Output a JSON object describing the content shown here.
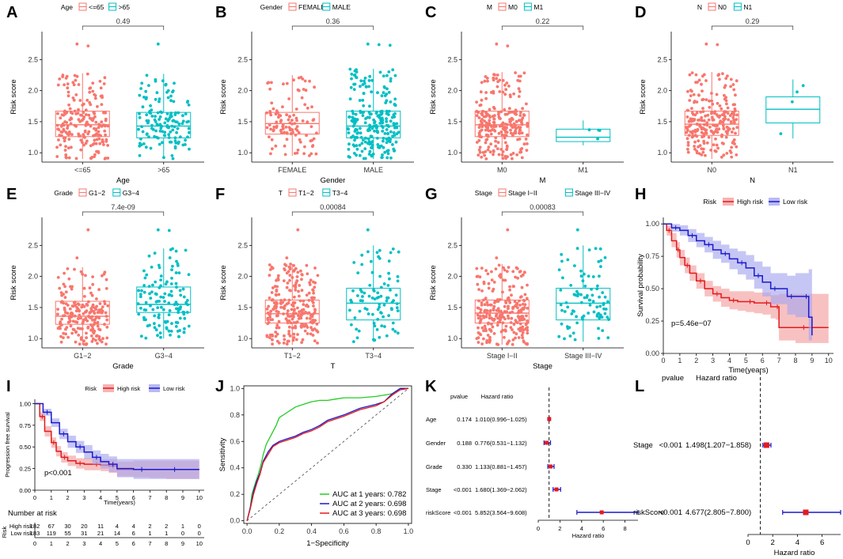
{
  "figure": {
    "panel_labels": [
      "A",
      "B",
      "C",
      "D",
      "E",
      "F",
      "G",
      "H",
      "I",
      "J",
      "K",
      "L"
    ]
  },
  "colors": {
    "group1": "#F8766D",
    "group2": "#00BFC4",
    "high_risk": "#E41A1C",
    "low_risk": "#1A1ACC",
    "high_band": "#F5A0A0",
    "low_band": "#A8A8F0",
    "roc_1y": "#22CC22",
    "roc_2y": "#1A1ACC",
    "roc_3y": "#E41A1C",
    "forest_point": "#E41A1C",
    "forest_ci": "#1A1ACC"
  },
  "chart_data": [
    {
      "panel": "A",
      "type": "boxplot",
      "ylabel": "Risk score",
      "xlabel": "Age",
      "legend_title": "Age",
      "categories": [
        "<=65",
        ">65"
      ],
      "pvalue": "0.49",
      "yticks": [
        1.0,
        1.5,
        2.0,
        2.5
      ],
      "ylim": [
        0.85,
        2.95
      ],
      "boxes": [
        {
          "min": 0.9,
          "q1": 1.26,
          "median": 1.45,
          "q3": 1.67,
          "max": 2.28,
          "n": 200,
          "outliers": [
            2.75,
            2.72
          ]
        },
        {
          "min": 0.9,
          "q1": 1.24,
          "median": 1.43,
          "q3": 1.65,
          "max": 2.27,
          "n": 140,
          "outliers": [
            2.75
          ]
        }
      ]
    },
    {
      "panel": "B",
      "type": "boxplot",
      "ylabel": "Risk score",
      "xlabel": "Gender",
      "legend_title": "Gender",
      "categories": [
        "FEMALE",
        "MALE"
      ],
      "pvalue": "0.36",
      "yticks": [
        1.0,
        1.5,
        2.0,
        2.5
      ],
      "ylim": [
        0.85,
        2.95
      ],
      "boxes": [
        {
          "min": 0.95,
          "q1": 1.3,
          "median": 1.47,
          "q3": 1.65,
          "max": 2.25,
          "n": 110,
          "outliers": []
        },
        {
          "min": 0.9,
          "q1": 1.24,
          "median": 1.43,
          "q3": 1.67,
          "max": 2.35,
          "n": 240,
          "outliers": [
            2.75,
            2.74,
            2.73
          ]
        }
      ]
    },
    {
      "panel": "C",
      "type": "boxplot",
      "ylabel": "Risk score",
      "xlabel": "M",
      "legend_title": "M",
      "categories": [
        "M0",
        "M1"
      ],
      "pvalue": "0.22",
      "yticks": [
        1.0,
        1.5,
        2.0,
        2.5
      ],
      "ylim": [
        0.85,
        2.95
      ],
      "boxes": [
        {
          "min": 0.9,
          "q1": 1.26,
          "median": 1.45,
          "q3": 1.67,
          "max": 2.3,
          "n": 250,
          "outliers": [
            2.75,
            2.72
          ]
        },
        {
          "min": 1.12,
          "q1": 1.18,
          "median": 1.25,
          "q3": 1.38,
          "max": 1.52,
          "n": 4,
          "outliers": []
        }
      ]
    },
    {
      "panel": "D",
      "type": "boxplot",
      "ylabel": "Risk score",
      "xlabel": "N",
      "legend_title": "N",
      "categories": [
        "N0",
        "N1"
      ],
      "pvalue": "0.29",
      "yticks": [
        1.0,
        1.5,
        2.0,
        2.5
      ],
      "ylim": [
        0.85,
        2.95
      ],
      "boxes": [
        {
          "min": 0.9,
          "q1": 1.28,
          "median": 1.46,
          "q3": 1.67,
          "max": 2.3,
          "n": 250,
          "outliers": [
            2.75,
            2.74
          ]
        },
        {
          "min": 1.23,
          "q1": 1.48,
          "median": 1.7,
          "q3": 1.9,
          "max": 2.18,
          "n": 4,
          "outliers": []
        }
      ]
    },
    {
      "panel": "E",
      "type": "boxplot",
      "ylabel": "Risk score",
      "xlabel": "Grade",
      "legend_title": "Grade",
      "categories": [
        "G1−2",
        "G3−4"
      ],
      "pvalue": "7.4e-09",
      "yticks": [
        1.0,
        1.5,
        2.0,
        2.5
      ],
      "ylim": [
        0.85,
        2.95
      ],
      "boxes": [
        {
          "min": 0.9,
          "q1": 1.23,
          "median": 1.36,
          "q3": 1.6,
          "max": 2.15,
          "n": 210,
          "outliers": [
            2.3,
            2.75
          ]
        },
        {
          "min": 1.0,
          "q1": 1.42,
          "median": 1.55,
          "q3": 1.83,
          "max": 2.45,
          "n": 130,
          "outliers": [
            2.75,
            2.74
          ]
        }
      ]
    },
    {
      "panel": "F",
      "type": "boxplot",
      "ylabel": "Risk score",
      "xlabel": "T",
      "legend_title": "T",
      "categories": [
        "T1−2",
        "T3−4"
      ],
      "pvalue": "0.00084",
      "yticks": [
        1.0,
        1.5,
        2.0,
        2.5
      ],
      "ylim": [
        0.85,
        2.95
      ],
      "boxes": [
        {
          "min": 0.9,
          "q1": 1.25,
          "median": 1.4,
          "q3": 1.62,
          "max": 2.2,
          "n": 250,
          "outliers": [
            2.3,
            2.75
          ]
        },
        {
          "min": 0.95,
          "q1": 1.3,
          "median": 1.57,
          "q3": 1.81,
          "max": 2.5,
          "n": 90,
          "outliers": [
            2.75
          ]
        }
      ]
    },
    {
      "panel": "G",
      "type": "boxplot",
      "ylabel": "Risk score",
      "xlabel": "Stage",
      "legend_title": "Stage",
      "categories": [
        "Stage I−II",
        "Stage III−IV"
      ],
      "pvalue": "0.00083",
      "yticks": [
        1.0,
        1.5,
        2.0,
        2.5
      ],
      "ylim": [
        0.85,
        2.95
      ],
      "boxes": [
        {
          "min": 0.9,
          "q1": 1.25,
          "median": 1.41,
          "q3": 1.62,
          "max": 2.2,
          "n": 250,
          "outliers": [
            2.3,
            2.75
          ]
        },
        {
          "min": 0.95,
          "q1": 1.3,
          "median": 1.57,
          "q3": 1.81,
          "max": 2.5,
          "n": 90,
          "outliers": [
            2.75
          ]
        }
      ]
    },
    {
      "panel": "H",
      "type": "kaplan-meier",
      "ylabel": "Survival probability",
      "xlabel": "Time(years)",
      "legend_title": "Risk",
      "legend": [
        "High risk",
        "Low risk"
      ],
      "pvalue_text": "p=5.46e−07",
      "xticks": [
        0,
        1,
        2,
        3,
        4,
        5,
        6,
        7,
        8,
        9,
        10
      ],
      "xlim": [
        0,
        10.3
      ],
      "yticks": [
        0.0,
        0.25,
        0.5,
        0.75,
        1.0
      ],
      "ytick_labels": [
        "0.00",
        "0.25",
        "0.50",
        "0.75",
        "1.00"
      ],
      "ylim": [
        0,
        1.05
      ],
      "series": [
        {
          "name": "High risk",
          "t": [
            0,
            0.2,
            0.5,
            0.8,
            1.0,
            1.3,
            1.6,
            2.0,
            2.5,
            3.0,
            3.5,
            4.0,
            4.5,
            5.0,
            5.5,
            6.0,
            6.5,
            6.8,
            7.0,
            8.0,
            9.0,
            10.0
          ],
          "s": [
            1.0,
            0.95,
            0.87,
            0.8,
            0.74,
            0.68,
            0.62,
            0.56,
            0.5,
            0.46,
            0.43,
            0.41,
            0.4,
            0.4,
            0.39,
            0.39,
            0.36,
            0.36,
            0.2,
            0.2,
            0.2,
            0.2
          ],
          "lo": [
            1.0,
            0.91,
            0.82,
            0.74,
            0.68,
            0.62,
            0.56,
            0.5,
            0.44,
            0.4,
            0.36,
            0.34,
            0.33,
            0.32,
            0.31,
            0.3,
            0.27,
            0.26,
            0.1,
            0.08,
            0.08,
            0.08
          ],
          "hi": [
            1.0,
            0.99,
            0.93,
            0.86,
            0.8,
            0.74,
            0.68,
            0.62,
            0.56,
            0.52,
            0.5,
            0.48,
            0.48,
            0.48,
            0.47,
            0.47,
            0.45,
            0.45,
            0.46,
            0.46,
            0.46,
            0.46
          ]
        },
        {
          "name": "Low risk",
          "t": [
            0,
            0.5,
            1.0,
            1.5,
            2.0,
            2.5,
            3.0,
            3.5,
            4.0,
            4.5,
            5.0,
            5.5,
            6.0,
            6.5,
            7.0,
            7.5,
            8.0,
            8.5,
            8.8,
            9.0
          ],
          "s": [
            1.0,
            0.97,
            0.95,
            0.91,
            0.87,
            0.84,
            0.8,
            0.77,
            0.73,
            0.7,
            0.66,
            0.6,
            0.55,
            0.5,
            0.5,
            0.44,
            0.44,
            0.44,
            0.28,
            0.14
          ],
          "lo": [
            1.0,
            0.94,
            0.91,
            0.86,
            0.82,
            0.78,
            0.73,
            0.7,
            0.65,
            0.61,
            0.57,
            0.5,
            0.44,
            0.38,
            0.38,
            0.3,
            0.28,
            0.28,
            0.1,
            0.03
          ],
          "hi": [
            1.0,
            1.0,
            0.99,
            0.96,
            0.93,
            0.9,
            0.87,
            0.84,
            0.81,
            0.79,
            0.76,
            0.71,
            0.67,
            0.62,
            0.62,
            0.6,
            0.62,
            0.62,
            0.65,
            0.65
          ]
        }
      ]
    },
    {
      "panel": "I",
      "type": "kaplan-meier",
      "ylabel": "Progression free survival",
      "xlabel": "Time(years)",
      "legend_title": "Risk",
      "legend": [
        "High risk",
        "Low risk"
      ],
      "pvalue_text": "p<0.001",
      "xticks": [
        0,
        1,
        2,
        3,
        4,
        5,
        6,
        7,
        8,
        9,
        10
      ],
      "xlim": [
        0,
        10.3
      ],
      "yticks": [
        0.0,
        0.25,
        0.5,
        0.75,
        1.0
      ],
      "ytick_labels": [
        "0.00",
        "0.25",
        "0.50",
        "0.75",
        "1.00"
      ],
      "ylim": [
        0,
        1.05
      ],
      "series": [
        {
          "name": "High risk",
          "t": [
            0,
            0.3,
            0.6,
            1.0,
            1.3,
            1.6,
            2.0,
            2.5,
            3.0,
            3.5,
            4.0,
            4.5,
            5.0,
            6.0,
            7.0,
            8.0,
            9.0,
            10.0
          ],
          "s": [
            1.0,
            0.85,
            0.68,
            0.55,
            0.45,
            0.38,
            0.34,
            0.31,
            0.3,
            0.3,
            0.29,
            0.28,
            0.24,
            0.24,
            0.24,
            0.24,
            0.24,
            0.24
          ],
          "lo": [
            1.0,
            0.8,
            0.62,
            0.49,
            0.39,
            0.32,
            0.28,
            0.25,
            0.23,
            0.23,
            0.22,
            0.2,
            0.16,
            0.15,
            0.14,
            0.13,
            0.13,
            0.13
          ],
          "hi": [
            1.0,
            0.9,
            0.74,
            0.61,
            0.51,
            0.44,
            0.4,
            0.37,
            0.37,
            0.37,
            0.36,
            0.36,
            0.33,
            0.34,
            0.34,
            0.34,
            0.34,
            0.34
          ]
        },
        {
          "name": "Low risk",
          "t": [
            0,
            0.5,
            1.0,
            1.5,
            2.0,
            2.5,
            3.0,
            3.5,
            4.0,
            4.5,
            5.0,
            6.0,
            7.0,
            8.0,
            9.0,
            10.0
          ],
          "s": [
            1.0,
            0.9,
            0.78,
            0.65,
            0.56,
            0.5,
            0.44,
            0.38,
            0.33,
            0.3,
            0.25,
            0.24,
            0.24,
            0.24,
            0.24,
            0.24
          ],
          "lo": [
            1.0,
            0.86,
            0.73,
            0.59,
            0.49,
            0.43,
            0.36,
            0.3,
            0.25,
            0.21,
            0.15,
            0.13,
            0.13,
            0.13,
            0.13,
            0.13
          ],
          "hi": [
            1.0,
            0.94,
            0.83,
            0.71,
            0.63,
            0.57,
            0.52,
            0.46,
            0.42,
            0.39,
            0.36,
            0.36,
            0.36,
            0.36,
            0.36,
            0.36
          ]
        }
      ],
      "risk_table": {
        "title": "Number at risk",
        "side_label": "Risk",
        "rows": [
          {
            "label": "High risk",
            "values": [
              "182",
              "67",
              "30",
              "20",
              "11",
              "4",
              "4",
              "2",
              "2",
              "1",
              "0"
            ]
          },
          {
            "label": "Low risk",
            "values": [
              "183",
              "119",
              "55",
              "31",
              "21",
              "14",
              "6",
              "1",
              "1",
              "0",
              "0"
            ]
          }
        ],
        "times": [
          "0",
          "1",
          "2",
          "3",
          "4",
          "5",
          "6",
          "7",
          "8",
          "9",
          "10"
        ]
      }
    },
    {
      "panel": "J",
      "type": "line",
      "subtype": "roc",
      "xlabel": "1−Specificity",
      "ylabel": "Sensitivity",
      "xticks": [
        0.0,
        0.2,
        0.4,
        0.6,
        0.8,
        1.0
      ],
      "yticks": [
        0.0,
        0.2,
        0.4,
        0.6,
        0.8,
        1.0
      ],
      "xlim": [
        -0.02,
        1.02
      ],
      "ylim": [
        -0.02,
        1.02
      ],
      "series": [
        {
          "name": "AUC at 1 years: 0.782",
          "x": [
            0,
            0.01,
            0.02,
            0.03,
            0.05,
            0.07,
            0.09,
            0.1,
            0.12,
            0.15,
            0.18,
            0.2,
            0.25,
            0.3,
            0.35,
            0.4,
            0.45,
            0.5,
            0.55,
            0.6,
            0.7,
            0.8,
            0.9,
            0.95,
            1.0
          ],
          "y": [
            0,
            0.05,
            0.1,
            0.2,
            0.28,
            0.35,
            0.44,
            0.5,
            0.58,
            0.65,
            0.72,
            0.78,
            0.82,
            0.86,
            0.88,
            0.9,
            0.91,
            0.91,
            0.92,
            0.93,
            0.93,
            0.94,
            0.96,
            1.0,
            1.0
          ]
        },
        {
          "name": "AUC at 2 years: 0.698",
          "x": [
            0,
            0.02,
            0.04,
            0.06,
            0.08,
            0.1,
            0.13,
            0.16,
            0.2,
            0.25,
            0.3,
            0.35,
            0.4,
            0.45,
            0.5,
            0.6,
            0.7,
            0.8,
            0.85,
            0.9,
            0.95,
            1.0
          ],
          "y": [
            0,
            0.1,
            0.22,
            0.3,
            0.36,
            0.45,
            0.52,
            0.57,
            0.6,
            0.62,
            0.64,
            0.67,
            0.69,
            0.72,
            0.76,
            0.8,
            0.85,
            0.88,
            0.9,
            0.96,
            1.0,
            1.0
          ]
        },
        {
          "name": "AUC at 3 years: 0.698",
          "x": [
            0,
            0.02,
            0.04,
            0.06,
            0.08,
            0.1,
            0.13,
            0.16,
            0.2,
            0.25,
            0.3,
            0.35,
            0.4,
            0.45,
            0.5,
            0.6,
            0.7,
            0.8,
            0.85,
            0.9,
            0.95,
            1.0
          ],
          "y": [
            0,
            0.09,
            0.2,
            0.28,
            0.35,
            0.44,
            0.5,
            0.56,
            0.59,
            0.61,
            0.63,
            0.66,
            0.68,
            0.71,
            0.75,
            0.79,
            0.84,
            0.87,
            0.9,
            0.95,
            0.99,
            1.0
          ]
        }
      ]
    },
    {
      "panel": "K",
      "type": "forest",
      "title_pvalue": "pvalue",
      "title_hr": "Hazard ratio",
      "xlabel": "Hazard ratio",
      "xticks": [
        0,
        2,
        4,
        6,
        8
      ],
      "xlim": [
        0,
        9.2
      ],
      "reference": 1,
      "rows": [
        {
          "label": "Age",
          "pvalue": "0.174",
          "hr_text": "1.010(0.996−1.025)",
          "hr": 1.01,
          "lo": 0.996,
          "hi": 1.025
        },
        {
          "label": "Gender",
          "pvalue": "0.188",
          "hr_text": "0.776(0.531−1.132)",
          "hr": 0.776,
          "lo": 0.531,
          "hi": 1.132
        },
        {
          "label": "Grade",
          "pvalue": "0.330",
          "hr_text": "1.133(0.881−1.457)",
          "hr": 1.133,
          "lo": 0.881,
          "hi": 1.457
        },
        {
          "label": "Stage",
          "pvalue": "<0.001",
          "hr_text": "1.680(1.369−2.062)",
          "hr": 1.68,
          "lo": 1.369,
          "hi": 2.062
        },
        {
          "label": "riskScore",
          "pvalue": "<0.001",
          "hr_text": "5.852(3.564−9.608)",
          "hr": 5.852,
          "lo": 3.564,
          "hi": 9.608
        }
      ]
    },
    {
      "panel": "L",
      "type": "forest",
      "title_pvalue": "pvalue",
      "title_hr": "Hazard ratio",
      "xlabel": "Hazard ratio",
      "xticks": [
        0,
        2,
        4,
        6
      ],
      "xlim": [
        0,
        7.5
      ],
      "reference": 1,
      "rows": [
        {
          "label": "Stage",
          "pvalue": "<0.001",
          "hr_text": "1.498(1.207−1.858)",
          "hr": 1.498,
          "lo": 1.207,
          "hi": 1.858
        },
        {
          "label": "riskScore",
          "pvalue": "<0.001",
          "hr_text": "4.677(2.805−7.800)",
          "hr": 4.677,
          "lo": 2.805,
          "hi": 7.8
        }
      ]
    }
  ]
}
